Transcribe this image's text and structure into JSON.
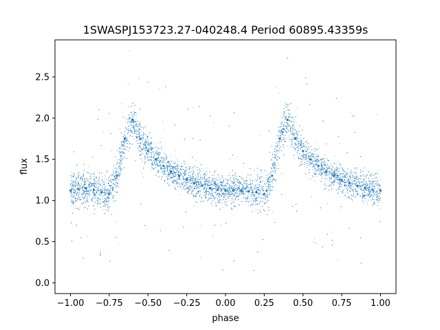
{
  "chart_data": {
    "type": "scatter",
    "title": "1SWASPJ153723.27-040248.4 Period 60895.43359s",
    "xlabel": "phase",
    "ylabel": "flux",
    "xlim": [
      -1.1,
      1.1
    ],
    "ylim": [
      -0.13,
      2.95
    ],
    "xticks": [
      -1.0,
      -0.75,
      -0.5,
      -0.25,
      0.0,
      0.25,
      0.5,
      0.75,
      1.0
    ],
    "xtick_labels": [
      "−1.00",
      "−0.75",
      "−0.50",
      "−0.25",
      "0.00",
      "0.25",
      "0.50",
      "0.75",
      "1.00"
    ],
    "yticks": [
      0.0,
      0.5,
      1.0,
      1.5,
      2.0,
      2.5
    ],
    "ytick_labels": [
      "0.0",
      "0.5",
      "1.0",
      "1.5",
      "2.0",
      "2.5"
    ],
    "grid": false,
    "point_color": "#1f77b4",
    "series": [
      {
        "x": [
          -1.0,
          -0.95,
          -0.9,
          -0.85,
          -0.8,
          -0.75,
          -0.7,
          -0.65,
          -0.6,
          -0.55,
          -0.5,
          -0.45,
          -0.4,
          -0.35,
          -0.3,
          -0.25,
          -0.2,
          -0.15,
          -0.1,
          -0.05,
          0.0,
          0.05,
          0.1,
          0.15,
          0.2,
          0.25,
          0.3,
          0.35,
          0.4,
          0.45,
          0.5,
          0.55,
          0.6,
          0.65,
          0.7,
          0.75,
          0.8,
          0.85,
          0.9,
          0.95,
          1.0
        ],
        "y": [
          1.12,
          1.14,
          1.15,
          1.13,
          1.1,
          1.08,
          1.3,
          1.75,
          1.98,
          1.75,
          1.6,
          1.5,
          1.42,
          1.35,
          1.3,
          1.25,
          1.21,
          1.18,
          1.15,
          1.13,
          1.12,
          1.12,
          1.12,
          1.11,
          1.1,
          1.08,
          1.3,
          1.75,
          1.98,
          1.75,
          1.6,
          1.5,
          1.42,
          1.35,
          1.3,
          1.25,
          1.21,
          1.18,
          1.15,
          1.13,
          1.12
        ],
        "spread": [
          0.18,
          0.18,
          0.18,
          0.18,
          0.2,
          0.2,
          0.2,
          0.2,
          0.2,
          0.18,
          0.17,
          0.16,
          0.15,
          0.15,
          0.14,
          0.14,
          0.14,
          0.14,
          0.14,
          0.14,
          0.14,
          0.15,
          0.15,
          0.15,
          0.17,
          0.2,
          0.2,
          0.2,
          0.2,
          0.18,
          0.17,
          0.16,
          0.15,
          0.15,
          0.14,
          0.14,
          0.14,
          0.14,
          0.15,
          0.16,
          0.18
        ]
      }
    ]
  }
}
